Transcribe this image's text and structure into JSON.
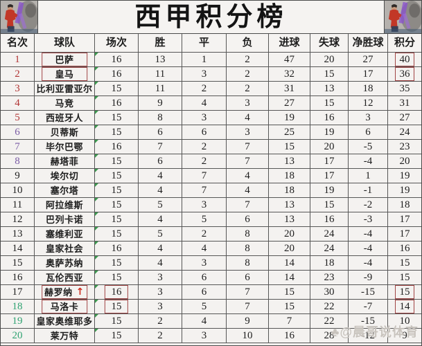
{
  "title": "西甲积分榜",
  "watermark": "♣@晨哥说体育",
  "colors": {
    "rank_red": "#b13434",
    "rank_purple": "#7a5ba5",
    "rank_black": "#1f1f1f",
    "rank_green": "#2fa271",
    "annotation_box": "#a04444",
    "arrow": "#cf2b1e",
    "grid": "#565656",
    "flag_triangle": "#3c9a4f"
  },
  "chart_data": {
    "type": "table",
    "title": "西甲积分榜",
    "columns": [
      "名次",
      "球队",
      "场次",
      "胜",
      "平",
      "负",
      "进球",
      "失球",
      "净胜球",
      "积分"
    ],
    "rows": [
      {
        "rank": "1",
        "team": "巴萨",
        "played": "16",
        "win": "13",
        "draw": "1",
        "loss": "2",
        "gf": "47",
        "ga": "20",
        "gd": "27",
        "pts": "40",
        "group": "red",
        "box": [
          "team",
          "pts"
        ],
        "arrow": false
      },
      {
        "rank": "2",
        "team": "皇马",
        "played": "16",
        "win": "11",
        "draw": "3",
        "loss": "2",
        "gf": "32",
        "ga": "15",
        "gd": "17",
        "pts": "36",
        "group": "red",
        "box": [
          "team",
          "pts"
        ],
        "arrow": false
      },
      {
        "rank": "3",
        "team": "比利亚雷亚尔",
        "played": "15",
        "win": "11",
        "draw": "2",
        "loss": "2",
        "gf": "31",
        "ga": "13",
        "gd": "18",
        "pts": "35",
        "group": "red",
        "box": [],
        "arrow": false
      },
      {
        "rank": "4",
        "team": "马竞",
        "played": "16",
        "win": "9",
        "draw": "4",
        "loss": "3",
        "gf": "27",
        "ga": "15",
        "gd": "12",
        "pts": "31",
        "group": "red",
        "box": [],
        "arrow": false
      },
      {
        "rank": "5",
        "team": "西班牙人",
        "played": "15",
        "win": "8",
        "draw": "3",
        "loss": "4",
        "gf": "19",
        "ga": "16",
        "gd": "3",
        "pts": "27",
        "group": "red",
        "box": [],
        "arrow": false
      },
      {
        "rank": "6",
        "team": "贝蒂斯",
        "played": "15",
        "win": "6",
        "draw": "6",
        "loss": "3",
        "gf": "25",
        "ga": "19",
        "gd": "6",
        "pts": "24",
        "group": "purple",
        "box": [],
        "arrow": false
      },
      {
        "rank": "7",
        "team": "毕尔巴鄂",
        "played": "16",
        "win": "7",
        "draw": "2",
        "loss": "7",
        "gf": "15",
        "ga": "20",
        "gd": "-5",
        "pts": "23",
        "group": "purple",
        "box": [],
        "arrow": false
      },
      {
        "rank": "8",
        "team": "赫塔菲",
        "played": "15",
        "win": "6",
        "draw": "2",
        "loss": "7",
        "gf": "13",
        "ga": "17",
        "gd": "-4",
        "pts": "20",
        "group": "purple",
        "box": [],
        "arrow": false
      },
      {
        "rank": "9",
        "team": "埃尔切",
        "played": "15",
        "win": "4",
        "draw": "7",
        "loss": "4",
        "gf": "18",
        "ga": "17",
        "gd": "1",
        "pts": "19",
        "group": "black",
        "box": [],
        "arrow": false
      },
      {
        "rank": "10",
        "team": "塞尔塔",
        "played": "15",
        "win": "4",
        "draw": "7",
        "loss": "4",
        "gf": "18",
        "ga": "19",
        "gd": "-1",
        "pts": "19",
        "group": "black",
        "box": [],
        "arrow": false
      },
      {
        "rank": "11",
        "team": "阿拉维斯",
        "played": "15",
        "win": "5",
        "draw": "3",
        "loss": "7",
        "gf": "13",
        "ga": "15",
        "gd": "-2",
        "pts": "18",
        "group": "black",
        "box": [],
        "arrow": false
      },
      {
        "rank": "12",
        "team": "巴列卡诺",
        "played": "15",
        "win": "4",
        "draw": "5",
        "loss": "6",
        "gf": "13",
        "ga": "16",
        "gd": "-3",
        "pts": "17",
        "group": "black",
        "box": [],
        "arrow": false
      },
      {
        "rank": "13",
        "team": "塞维利亚",
        "played": "15",
        "win": "5",
        "draw": "2",
        "loss": "8",
        "gf": "20",
        "ga": "24",
        "gd": "-4",
        "pts": "17",
        "group": "black",
        "box": [],
        "arrow": false
      },
      {
        "rank": "14",
        "team": "皇家社会",
        "played": "16",
        "win": "4",
        "draw": "4",
        "loss": "8",
        "gf": "20",
        "ga": "24",
        "gd": "-4",
        "pts": "16",
        "group": "black",
        "box": [],
        "arrow": false
      },
      {
        "rank": "15",
        "team": "奥萨苏纳",
        "played": "15",
        "win": "4",
        "draw": "3",
        "loss": "8",
        "gf": "14",
        "ga": "18",
        "gd": "-4",
        "pts": "15",
        "group": "black",
        "box": [],
        "arrow": false
      },
      {
        "rank": "16",
        "team": "瓦伦西亚",
        "played": "15",
        "win": "3",
        "draw": "6",
        "loss": "6",
        "gf": "14",
        "ga": "23",
        "gd": "-9",
        "pts": "15",
        "group": "black",
        "box": [],
        "arrow": false
      },
      {
        "rank": "17",
        "team": "赫罗纳",
        "played": "16",
        "win": "3",
        "draw": "6",
        "loss": "7",
        "gf": "15",
        "ga": "30",
        "gd": "-15",
        "pts": "15",
        "group": "black",
        "box": [
          "team",
          "played",
          "pts"
        ],
        "arrow": true
      },
      {
        "rank": "18",
        "team": "马洛卡",
        "played": "15",
        "win": "3",
        "draw": "5",
        "loss": "7",
        "gf": "15",
        "ga": "22",
        "gd": "-7",
        "pts": "14",
        "group": "green",
        "box": [
          "team",
          "played",
          "pts"
        ],
        "arrow": false
      },
      {
        "rank": "19",
        "team": "皇家奥维耶多",
        "played": "15",
        "win": "2",
        "draw": "4",
        "loss": "9",
        "gf": "7",
        "ga": "22",
        "gd": "-15",
        "pts": "10",
        "group": "green",
        "box": [],
        "arrow": false
      },
      {
        "rank": "20",
        "team": "莱万特",
        "played": "15",
        "win": "2",
        "draw": "3",
        "loss": "10",
        "gf": "16",
        "ga": "28",
        "gd": "-12",
        "pts": "9",
        "group": "green",
        "box": [],
        "arrow": false
      }
    ]
  }
}
